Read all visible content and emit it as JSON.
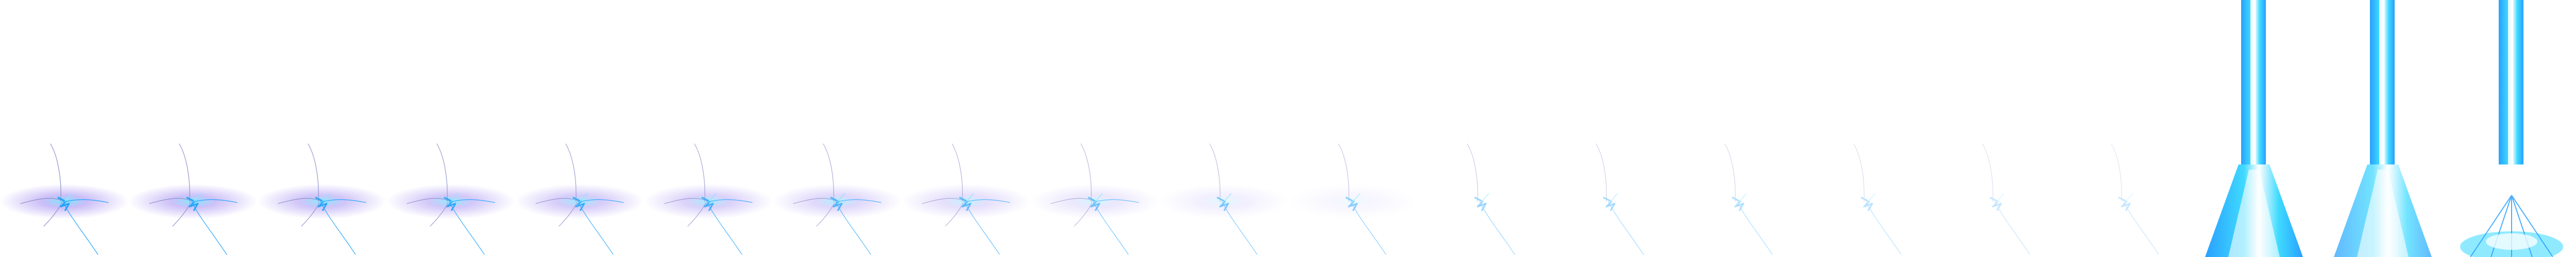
{
  "sprite_sheet": {
    "background": "#ffffff",
    "colors": {
      "halo": "#b9a8f5",
      "halo_core": "#6fe3ff",
      "spark": "#1fa4ff",
      "spark_light": "#8fe6ff",
      "beam_core": "#ffffff",
      "beam_blue": "#1e9bff",
      "beam_cyan": "#35d8ff"
    },
    "frames": [
      {
        "kind": "burst",
        "halo_level": 1.0,
        "spark_level": 1.0
      },
      {
        "kind": "burst",
        "halo_level": 0.95,
        "spark_level": 0.95
      },
      {
        "kind": "burst",
        "halo_level": 0.9,
        "spark_level": 0.92
      },
      {
        "kind": "burst",
        "halo_level": 0.85,
        "spark_level": 0.88
      },
      {
        "kind": "burst",
        "halo_level": 0.78,
        "spark_level": 0.82
      },
      {
        "kind": "burst",
        "halo_level": 0.7,
        "spark_level": 0.78
      },
      {
        "kind": "burst",
        "halo_level": 0.6,
        "spark_level": 0.72
      },
      {
        "kind": "burst",
        "halo_level": 0.48,
        "spark_level": 0.66
      },
      {
        "kind": "burst",
        "halo_level": 0.36,
        "spark_level": 0.6
      },
      {
        "kind": "burst",
        "halo_level": 0.24,
        "spark_level": 0.55
      },
      {
        "kind": "burst",
        "halo_level": 0.14,
        "spark_level": 0.5
      },
      {
        "kind": "burst",
        "halo_level": 0.0,
        "spark_level": 0.45
      },
      {
        "kind": "burst",
        "halo_level": 0.0,
        "spark_level": 0.4
      },
      {
        "kind": "burst",
        "halo_level": 0.0,
        "spark_level": 0.35
      },
      {
        "kind": "burst",
        "halo_level": 0.0,
        "spark_level": 0.3
      },
      {
        "kind": "burst",
        "halo_level": 0.0,
        "spark_level": 0.26
      },
      {
        "kind": "burst",
        "halo_level": 0.0,
        "spark_level": 0.22
      },
      {
        "kind": "beam",
        "variant": "cone"
      },
      {
        "kind": "beam",
        "variant": "cone-split"
      },
      {
        "kind": "beam",
        "variant": "splash"
      }
    ]
  }
}
